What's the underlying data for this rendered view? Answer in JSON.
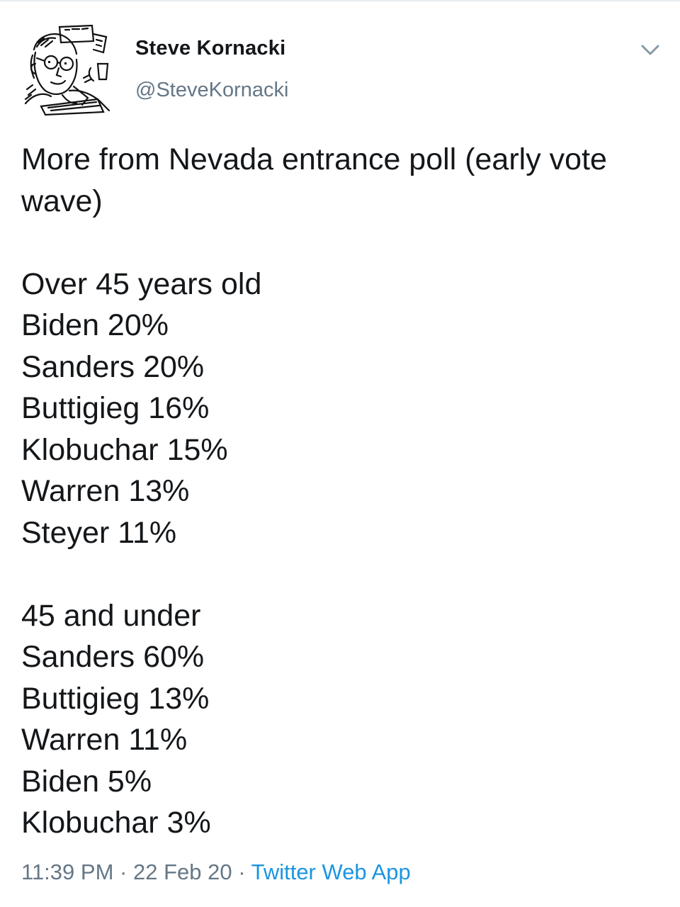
{
  "author": {
    "name": "Steve Kornacki",
    "handle": "@SteveKornacki",
    "avatar_icon": "cartoon-portrait-avatar"
  },
  "menu": {
    "icon": "chevron-down-icon"
  },
  "tweet": {
    "intro_line1": "More from Nevada entrance poll (early vote",
    "intro_line2": "wave)",
    "groups": [
      {
        "heading": "Over 45 years old",
        "results": [
          "Biden 20%",
          "Sanders 20%",
          "Buttigieg 16%",
          "Klobuchar 15%",
          "Warren 13%",
          "Steyer 11%"
        ]
      },
      {
        "heading": "45 and under",
        "results": [
          "Sanders 60%",
          "Buttigieg 13%",
          "Warren 11%",
          "Biden 5%",
          "Klobuchar 3%"
        ]
      }
    ]
  },
  "meta": {
    "time": "11:39 PM",
    "separator": "·",
    "date": "22 Feb 20",
    "source": "Twitter Web App"
  },
  "colors": {
    "text": "#14171a",
    "secondary": "#657786",
    "link": "#1b95e0"
  }
}
